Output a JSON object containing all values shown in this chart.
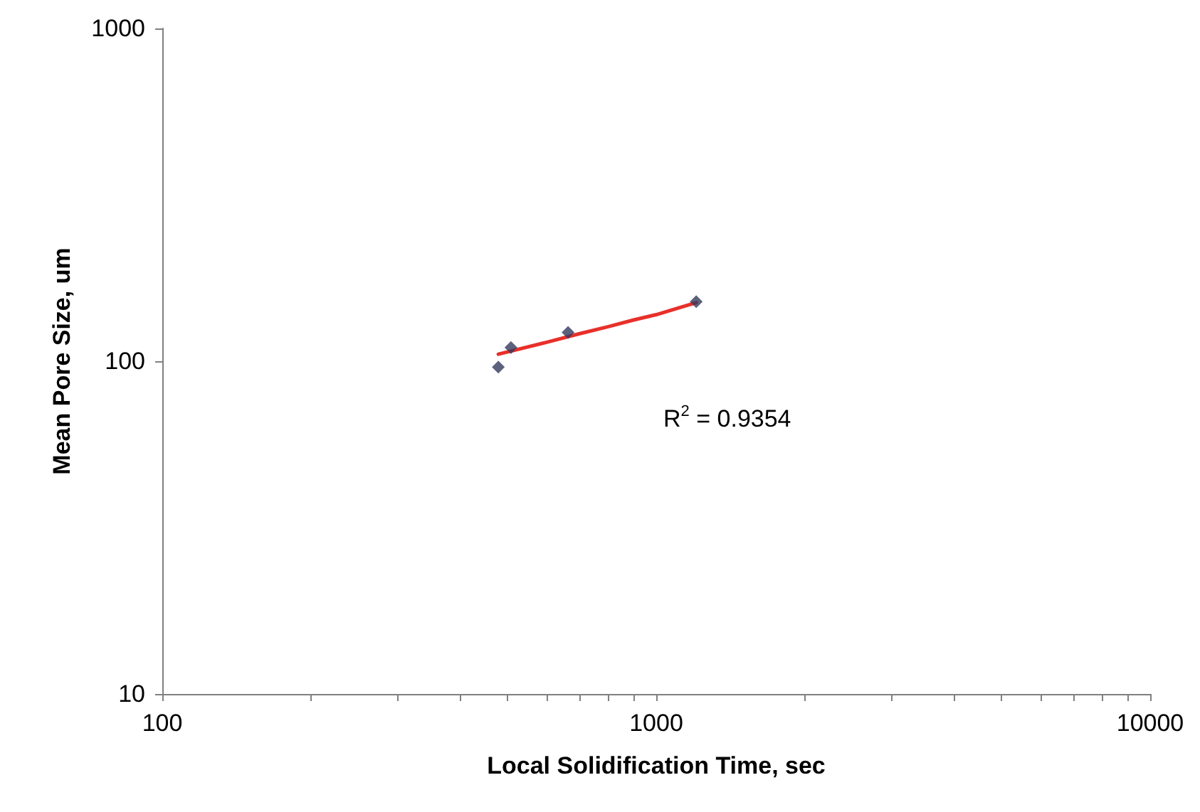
{
  "chart_data": {
    "type": "scatter",
    "xlabel": "Local Solidification Time, sec",
    "ylabel": "Mean Pore Size, um",
    "series": [
      {
        "color": "#333a5c",
        "marker": "diamond",
        "x": [
          479,
          508,
          663,
          1205
        ],
        "values": [
          96,
          110,
          122,
          151
        ]
      },
      {
        "type": "line",
        "color": "#e8302a",
        "marker": "none",
        "x": [
          479,
          600,
          700,
          800,
          900,
          1000,
          1100,
          1205
        ],
        "values": [
          105,
          114,
          121,
          127,
          133,
          138,
          144,
          150
        ]
      }
    ],
    "log": "xy",
    "xlim": [
      100,
      10000
    ],
    "ylim": [
      10,
      1000
    ],
    "xticks": [
      100,
      {
        "value": 200,
        "label": null
      },
      {
        "value": 300,
        "label": null
      },
      {
        "value": 400,
        "label": null
      },
      {
        "value": 500,
        "label": null
      },
      {
        "value": 600,
        "label": null
      },
      {
        "value": 700,
        "label": null
      },
      {
        "value": 800,
        "label": null
      },
      {
        "value": 900,
        "label": null
      },
      1000,
      {
        "value": 2000,
        "label": null
      },
      {
        "value": 3000,
        "label": null
      },
      {
        "value": 4000,
        "label": null
      },
      {
        "value": 5000,
        "label": null
      },
      {
        "value": 6000,
        "label": null
      },
      {
        "value": 7000,
        "label": null
      },
      {
        "value": 8000,
        "label": null
      },
      {
        "value": 9000,
        "label": null
      },
      10000
    ],
    "yticks": [
      10,
      100,
      1000
    ],
    "grid": false,
    "annotations": [
      "R$^{2}$ = 0.9354"
    ]
  }
}
